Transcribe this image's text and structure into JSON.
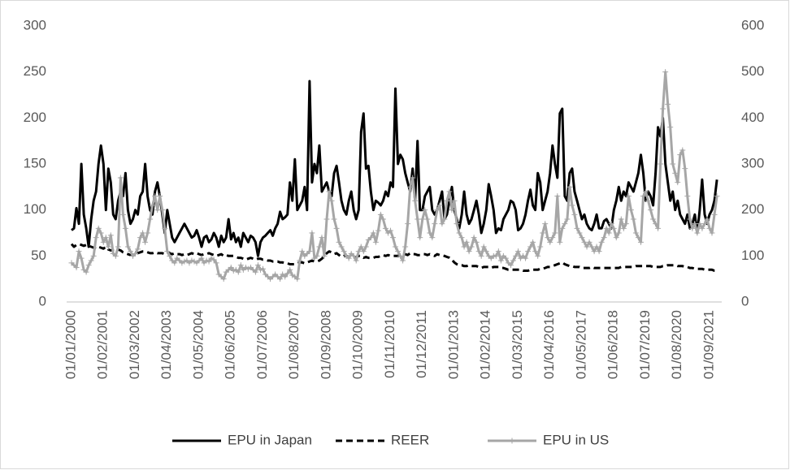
{
  "chart_data": {
    "type": "line",
    "categories": [
      "01/01/2000",
      null,
      null,
      null,
      null,
      null,
      null,
      null,
      null,
      null,
      null,
      null,
      null,
      "01/02/2001",
      null,
      null,
      null,
      null,
      null,
      null,
      null,
      null,
      null,
      null,
      null,
      null,
      "01/03/2002",
      null,
      null,
      null,
      null,
      null,
      null,
      null,
      null,
      null,
      null,
      null,
      null,
      "01/04/2003",
      null,
      null,
      null,
      null,
      null,
      null,
      null,
      null,
      null,
      null,
      null,
      null,
      "01/05/2004",
      null,
      null,
      null,
      null,
      null,
      null,
      null,
      null,
      null,
      null,
      null,
      null,
      "01/06/2005",
      null,
      null,
      null,
      null,
      null,
      null,
      null,
      null,
      null,
      null,
      null,
      null,
      "01/07/2006",
      null,
      null,
      null,
      null,
      null,
      null,
      null,
      null,
      null,
      null,
      null,
      null,
      "01/08/2007",
      null,
      null,
      null,
      null,
      null,
      null,
      null,
      null,
      null,
      null,
      null,
      null,
      "01/09/2008",
      null,
      null,
      null,
      null,
      null,
      null,
      null,
      null,
      null,
      null,
      null,
      null,
      "01/10/2009",
      null,
      null,
      null,
      null,
      null,
      null,
      null,
      null,
      null,
      null,
      null,
      null,
      "01/11/2010",
      null,
      null,
      null,
      null,
      null,
      null,
      null,
      null,
      null,
      null,
      null,
      null,
      "01/12/2011",
      null,
      null,
      null,
      null,
      null,
      null,
      null,
      null,
      null,
      null,
      null,
      null,
      "01/01/2013",
      null,
      null,
      null,
      null,
      null,
      null,
      null,
      null,
      null,
      null,
      null,
      null,
      "01/02/2014",
      null,
      null,
      null,
      null,
      null,
      null,
      null,
      null,
      null,
      null,
      null,
      null,
      "01/03/2015",
      null,
      null,
      null,
      null,
      null,
      null,
      null,
      null,
      null,
      null,
      null,
      null,
      "01/04/2016",
      null,
      null,
      null,
      null,
      null,
      null,
      null,
      null,
      null,
      null,
      null,
      null,
      "01/05/2017",
      null,
      null,
      null,
      null,
      null,
      null,
      null,
      null,
      null,
      null,
      null,
      null,
      "01/06/2018",
      null,
      null,
      null,
      null,
      null,
      null,
      null,
      null,
      null,
      null,
      null,
      null,
      "01/07/2019",
      null,
      null,
      null,
      null,
      null,
      null,
      null,
      null,
      null,
      null,
      null,
      null,
      "01/08/2020",
      null,
      null,
      null,
      null,
      null,
      null,
      null,
      null,
      null,
      null,
      null,
      null,
      "01/09/2021",
      null,
      null,
      null
    ],
    "series": [
      {
        "name": "EPU in Japan",
        "color": "#000000",
        "dash": false,
        "values": [
          78,
          80,
          102,
          85,
          150,
          95,
          80,
          60,
          90,
          110,
          120,
          150,
          170,
          150,
          100,
          145,
          130,
          95,
          90,
          110,
          120,
          115,
          140,
          100,
          85,
          90,
          100,
          95,
          115,
          120,
          150,
          115,
          100,
          95,
          120,
          130,
          115,
          95,
          75,
          100,
          85,
          70,
          65,
          70,
          75,
          80,
          85,
          80,
          75,
          70,
          72,
          78,
          70,
          60,
          70,
          72,
          65,
          68,
          75,
          70,
          60,
          72,
          65,
          70,
          90,
          68,
          75,
          65,
          70,
          60,
          75,
          70,
          65,
          72,
          70,
          65,
          50,
          65,
          70,
          72,
          75,
          78,
          72,
          80,
          85,
          98,
          90,
          92,
          95,
          130,
          110,
          155,
          100,
          105,
          110,
          125,
          100,
          240,
          130,
          150,
          140,
          170,
          120,
          125,
          130,
          120,
          115,
          140,
          148,
          130,
          110,
          100,
          95,
          110,
          120,
          100,
          90,
          100,
          185,
          205,
          145,
          148,
          120,
          100,
          110,
          108,
          105,
          110,
          120,
          115,
          130,
          125,
          232,
          150,
          160,
          155,
          140,
          130,
          120,
          145,
          110,
          175,
          100,
          100,
          115,
          120,
          125,
          100,
          95,
          100,
          110,
          120,
          90,
          95,
          110,
          125,
          100,
          90,
          80,
          95,
          120,
          95,
          85,
          90,
          100,
          110,
          95,
          75,
          85,
          100,
          128,
          115,
          100,
          75,
          80,
          78,
          90,
          95,
          100,
          110,
          108,
          100,
          78,
          80,
          85,
          95,
          110,
          122,
          105,
          100,
          140,
          130,
          100,
          110,
          120,
          140,
          170,
          150,
          135,
          205,
          210,
          115,
          110,
          140,
          145,
          120,
          110,
          100,
          90,
          95,
          85,
          80,
          78,
          85,
          95,
          80,
          80,
          88,
          90,
          85,
          80,
          100,
          110,
          125,
          110,
          120,
          115,
          130,
          125,
          120,
          130,
          140,
          160,
          140,
          110,
          120,
          115,
          105,
          140,
          190,
          180,
          200,
          150,
          130,
          110,
          120,
          100,
          110,
          95,
          90,
          85,
          95,
          80,
          85,
          95,
          75,
          100,
          133,
          95,
          85,
          95,
          100,
          110,
          133
        ]
      },
      {
        "name": "REER",
        "color": "#000000",
        "dash": true,
        "values": [
          63,
          60,
          62,
          63,
          62,
          61,
          62,
          61,
          60,
          59,
          58,
          60,
          59,
          58,
          60,
          57,
          56,
          57,
          58,
          57,
          56,
          54,
          53,
          52,
          51,
          51,
          52,
          53,
          54,
          55,
          55,
          54,
          53,
          53,
          54,
          53,
          53,
          53,
          52,
          53,
          53,
          52,
          53,
          52,
          52,
          51,
          52,
          51,
          52,
          53,
          52,
          53,
          52,
          51,
          52,
          52,
          53,
          52,
          51,
          50,
          51,
          52,
          50,
          51,
          50,
          50,
          50,
          49,
          48,
          48,
          47,
          46,
          47,
          48,
          47,
          46,
          47,
          47,
          46,
          46,
          45,
          45,
          44,
          44,
          44,
          43,
          43,
          42,
          42,
          41,
          41,
          41,
          42,
          43,
          43,
          42,
          43,
          44,
          45,
          44,
          44,
          45,
          47,
          50,
          53,
          55,
          54,
          52,
          53,
          51,
          49,
          50,
          50,
          49,
          49,
          48,
          49,
          50,
          50,
          48,
          49,
          48,
          48,
          48,
          49,
          49,
          50,
          51,
          50,
          51,
          50,
          50,
          50,
          50,
          51,
          52,
          52,
          51,
          53,
          52,
          52,
          51,
          51,
          52,
          52,
          51,
          52,
          51,
          50,
          52,
          51,
          51,
          50,
          49,
          48,
          46,
          43,
          41,
          40,
          40,
          39,
          39,
          40,
          39,
          39,
          39,
          38,
          37,
          38,
          38,
          38,
          37,
          38,
          38,
          38,
          37,
          37,
          36,
          35,
          35,
          35,
          35,
          35,
          35,
          34,
          34,
          34,
          35,
          35,
          35,
          35,
          36,
          36,
          37,
          38,
          38,
          39,
          40,
          41,
          42,
          43,
          41,
          40,
          39,
          39,
          38,
          38,
          38,
          37,
          37,
          37,
          37,
          38,
          37,
          37,
          37,
          37,
          37,
          37,
          37,
          37,
          37,
          37,
          37,
          38,
          38,
          38,
          38,
          38,
          38,
          39,
          39,
          39,
          39,
          39,
          39,
          39,
          38,
          38,
          38,
          38,
          39,
          39,
          40,
          40,
          40,
          40,
          39,
          39,
          39,
          38,
          38,
          37,
          37,
          36,
          36,
          36,
          36,
          35,
          35,
          35,
          35,
          34,
          34
        ]
      },
      {
        "name": "EPU in US",
        "color": "#a6a6a6",
        "dash": false,
        "axis": "y2",
        "values": [
          85,
          80,
          75,
          110,
          95,
          70,
          65,
          80,
          90,
          100,
          140,
          160,
          150,
          130,
          140,
          120,
          145,
          105,
          100,
          120,
          270,
          190,
          160,
          120,
          110,
          100,
          105,
          115,
          140,
          150,
          130,
          150,
          180,
          210,
          230,
          200,
          230,
          200,
          160,
          110,
          100,
          90,
          85,
          95,
          90,
          85,
          88,
          90,
          85,
          90,
          88,
          85,
          90,
          95,
          85,
          90,
          88,
          95,
          92,
          85,
          60,
          55,
          50,
          65,
          70,
          75,
          68,
          70,
          65,
          80,
          70,
          75,
          72,
          75,
          70,
          65,
          80,
          70,
          72,
          60,
          55,
          50,
          55,
          60,
          55,
          50,
          60,
          55,
          62,
          70,
          58,
          55,
          50,
          90,
          110,
          100,
          105,
          110,
          150,
          95,
          100,
          120,
          140,
          100,
          180,
          240,
          220,
          180,
          160,
          130,
          120,
          110,
          100,
          95,
          105,
          100,
          90,
          110,
          120,
          110,
          120,
          135,
          140,
          150,
          130,
          155,
          190,
          180,
          160,
          150,
          155,
          140,
          120,
          110,
          100,
          90,
          120,
          170,
          250,
          270,
          220,
          180,
          140,
          180,
          200,
          180,
          150,
          140,
          170,
          200,
          210,
          170,
          180,
          220,
          240,
          200,
          220,
          170,
          150,
          140,
          120,
          130,
          110,
          120,
          140,
          130,
          110,
          100,
          120,
          110,
          100,
          95,
          100,
          100,
          110,
          90,
          100,
          95,
          85,
          80,
          90,
          100,
          110,
          95,
          100,
          95,
          110,
          120,
          130,
          110,
          100,
          120,
          150,
          170,
          140,
          130,
          140,
          150,
          230,
          130,
          160,
          170,
          180,
          250,
          210,
          190,
          160,
          150,
          140,
          130,
          120,
          130,
          120,
          110,
          120,
          110,
          130,
          140,
          160,
          150,
          170,
          160,
          140,
          150,
          180,
          160,
          170,
          230,
          200,
          180,
          150,
          140,
          130,
          230,
          240,
          220,
          200,
          180,
          170,
          160,
          300,
          420,
          500,
          430,
          380,
          300,
          280,
          260,
          320,
          330,
          290,
          230,
          180,
          160,
          170,
          150,
          170,
          160,
          170,
          180,
          160,
          150,
          190,
          230
        ]
      }
    ],
    "ylim": [
      0,
      300
    ],
    "yticks": [
      0,
      50,
      100,
      150,
      200,
      250,
      300
    ],
    "y2lim": [
      0,
      600
    ],
    "y2ticks": [
      0,
      100,
      200,
      300,
      400,
      500,
      600
    ],
    "grid": false,
    "legend": "bottom"
  }
}
